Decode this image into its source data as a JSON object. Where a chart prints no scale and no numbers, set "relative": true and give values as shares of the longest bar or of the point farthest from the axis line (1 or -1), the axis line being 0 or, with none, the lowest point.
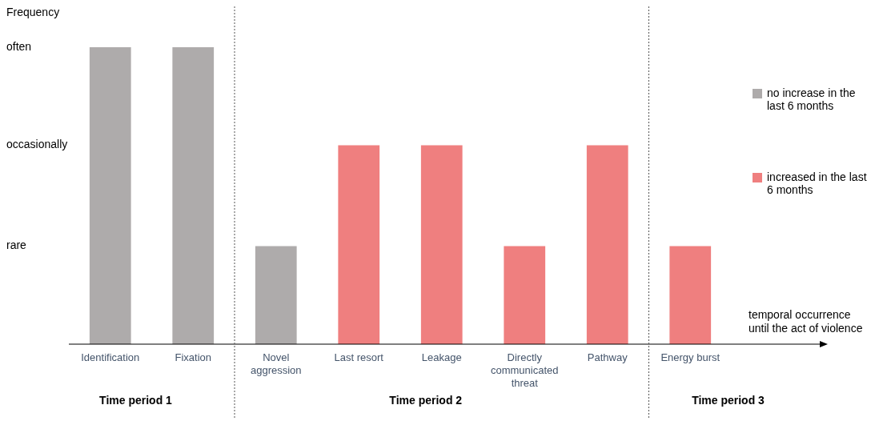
{
  "chart_data": {
    "type": "bar",
    "ylabel": "Frequency",
    "xlabel": "temporal occurrence until the act of violence",
    "relative": true,
    "categories": [
      "Identification",
      "Fixation",
      "Novel aggression",
      "Last resort",
      "Leakage",
      "Directly communicated threat",
      "Pathway",
      "Energy burst"
    ],
    "series": [
      {
        "name": "no increase in the last 6 months",
        "color": "#aeabab",
        "values": [
          1,
          1,
          0.33,
          null,
          null,
          null,
          null,
          null
        ]
      },
      {
        "name": "increased in the last 6 months",
        "color": "#ef7f7f",
        "values": [
          null,
          null,
          null,
          0.67,
          0.67,
          0.33,
          0.67,
          0.33
        ]
      }
    ],
    "annotations": [
      "rare",
      "occasionally",
      "often",
      "Time period 1",
      "Time period 2",
      "Time period 3"
    ],
    "grid": false,
    "legend": "right"
  }
}
